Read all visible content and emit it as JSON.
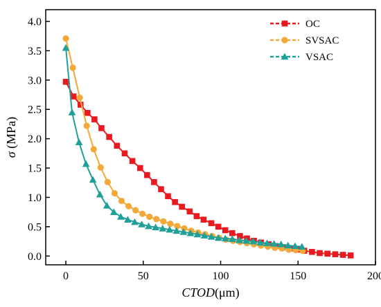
{
  "chart_data": {
    "type": "line",
    "xlabel_italic": "CTOD",
    "xlabel_unit": "(μm)",
    "ylabel_symbol": "σ",
    "ylabel_unit": " (MPa)",
    "xlim": [
      -13,
      200
    ],
    "ylim": [
      -0.15,
      4.2
    ],
    "xticks": [
      0,
      50,
      100,
      150,
      200
    ],
    "xtick_labels": [
      "0",
      "50",
      "100",
      "150",
      "200"
    ],
    "yticks": [
      0,
      0.5,
      1,
      1.5,
      2,
      2.5,
      3,
      3.5,
      4
    ],
    "ytick_labels": [
      "0.0",
      "0.5",
      "1.0",
      "1.5",
      "2.0",
      "2.5",
      "3.0",
      "3.5",
      "4.0"
    ],
    "legend_position": "top-right",
    "series": [
      {
        "name": "OC",
        "color": "#e8191f",
        "marker": "square",
        "x": [
          0,
          5,
          9.5,
          14,
          18.5,
          23,
          28,
          33,
          38,
          43,
          48,
          52.5,
          57,
          61.5,
          66,
          70.5,
          75,
          80,
          84.5,
          89,
          94,
          98.5,
          103,
          107.5,
          112.5,
          117,
          121.5,
          126,
          131,
          135.5,
          140,
          145,
          149.5,
          154,
          159,
          164,
          169,
          174,
          179,
          184
        ],
        "y": [
          2.97,
          2.72,
          2.58,
          2.44,
          2.33,
          2.18,
          2.03,
          1.88,
          1.75,
          1.62,
          1.5,
          1.38,
          1.26,
          1.14,
          1.02,
          0.92,
          0.84,
          0.76,
          0.68,
          0.62,
          0.56,
          0.5,
          0.44,
          0.39,
          0.34,
          0.3,
          0.26,
          0.23,
          0.2,
          0.17,
          0.15,
          0.13,
          0.11,
          0.09,
          0.07,
          0.05,
          0.04,
          0.03,
          0.02,
          0.01
        ]
      },
      {
        "name": "SVSAC",
        "color": "#f4a838",
        "marker": "circle",
        "x": [
          0,
          4.5,
          9,
          13.5,
          18,
          22.5,
          27,
          31.5,
          36,
          40.5,
          45,
          49.5,
          54,
          58.5,
          63,
          67.5,
          72,
          76.5,
          81,
          85.5,
          90,
          94.5,
          99,
          103.5,
          108,
          112.5,
          117,
          121.5,
          126,
          130.5,
          135,
          139.5,
          144,
          148.5,
          153
        ],
        "y": [
          3.71,
          3.21,
          2.7,
          2.22,
          1.82,
          1.51,
          1.26,
          1.07,
          0.94,
          0.85,
          0.78,
          0.72,
          0.67,
          0.63,
          0.59,
          0.55,
          0.51,
          0.47,
          0.43,
          0.4,
          0.37,
          0.34,
          0.31,
          0.28,
          0.26,
          0.24,
          0.22,
          0.2,
          0.18,
          0.16,
          0.14,
          0.13,
          0.11,
          0.1,
          0.09
        ]
      },
      {
        "name": "VSAC",
        "color": "#1fa199",
        "marker": "triangle",
        "x": [
          0,
          4,
          8.5,
          13,
          17.5,
          22,
          26.5,
          31,
          35.5,
          40,
          44.5,
          49,
          53.5,
          58,
          62.5,
          67,
          71.5,
          76,
          80.5,
          85,
          89.5,
          94,
          98.5,
          103,
          107.5,
          112,
          116.5,
          121,
          125.5,
          130,
          134.5,
          139,
          143.5,
          148,
          152.5
        ],
        "y": [
          3.55,
          2.45,
          1.94,
          1.57,
          1.3,
          1.05,
          0.86,
          0.75,
          0.67,
          0.62,
          0.58,
          0.54,
          0.51,
          0.49,
          0.47,
          0.45,
          0.43,
          0.41,
          0.39,
          0.37,
          0.35,
          0.33,
          0.31,
          0.3,
          0.29,
          0.27,
          0.26,
          0.25,
          0.23,
          0.22,
          0.21,
          0.2,
          0.18,
          0.17,
          0.16
        ]
      }
    ]
  }
}
